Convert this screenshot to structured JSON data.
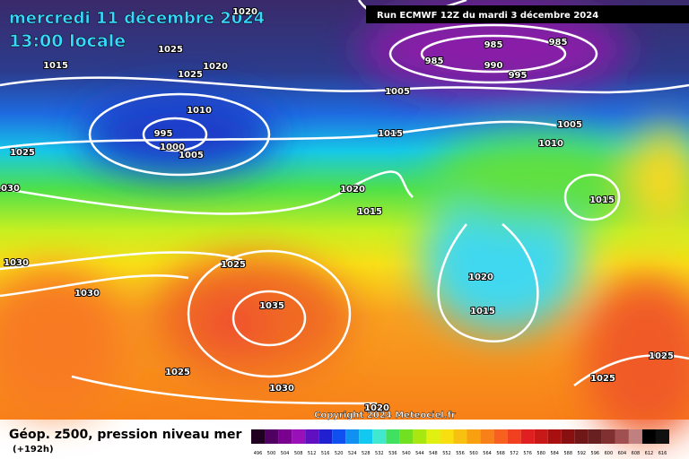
{
  "header": {
    "date": "mercredi 11 décembre 2024",
    "time": "13:00 locale",
    "run": "Run ECMWF 12Z du mardi 3 décembre 2024"
  },
  "footer": {
    "title": "Géop. z500, pression niveau mer",
    "lead": "(+192h)",
    "copyright": "Copyright 2024 Meteociel.fr"
  },
  "isobars": [
    1020,
    1025,
    1025,
    1020,
    1015,
    985,
    985,
    985,
    990,
    995,
    1005,
    1010,
    995,
    1000,
    1005,
    1015,
    1005,
    1010,
    1025,
    1030,
    1020,
    1015,
    1015,
    1025,
    1030,
    1030,
    1035,
    1020,
    1015,
    1025,
    1030,
    1025,
    1025,
    1020
  ],
  "colorbar": {
    "labels": [
      496,
      500,
      504,
      508,
      512,
      516,
      520,
      524,
      528,
      532,
      536,
      540,
      544,
      548,
      552,
      556,
      560,
      564,
      568,
      572,
      576,
      580,
      584,
      588,
      592,
      596,
      600,
      604,
      608,
      612,
      616
    ]
  }
}
